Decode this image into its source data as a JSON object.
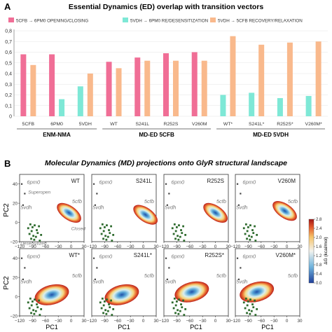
{
  "chart_data": [
    {
      "type": "bar",
      "panel_label": "A",
      "title": "Essential Dynamics (ED) overlap with transition vectors",
      "ylim": [
        0,
        0.8
      ],
      "yticks": [
        "0",
        "0,1",
        "0,2",
        "0,3",
        "0,4",
        "0,5",
        "0,6",
        "0,7",
        "0,8"
      ],
      "legend_placement": "top",
      "series": [
        {
          "name": "5CFB → 6PM0 OPENING/CLOSING",
          "color": "#f06e96"
        },
        {
          "name": "5VDH → 6PM0 RE/DESENSITIZATION",
          "color": "#7ee8d6"
        },
        {
          "name": "5VDH → 5CFB RECOVERY/RELAXATION",
          "color": "#f9b98c"
        }
      ],
      "categories": [
        "5CFB",
        "6PM0",
        "5VDH",
        "WT",
        "S241L",
        "R252S",
        "V260M",
        "WT*",
        "S241L*",
        "R252S*",
        "V260M*"
      ],
      "groups": [
        {
          "name": "ENM-NMA",
          "from": 0,
          "to": 2
        },
        {
          "name": "MD-ED 5CFB",
          "from": 3,
          "to": 6
        },
        {
          "name": "MD-ED 5VDH",
          "from": 7,
          "to": 10
        }
      ],
      "bars": [
        {
          "category": "5CFB",
          "values": [
            0.58,
            null,
            0.48
          ]
        },
        {
          "category": "6PM0",
          "values": [
            0.58,
            0.16,
            null
          ]
        },
        {
          "category": "5VDH",
          "values": [
            null,
            0.28,
            0.4
          ]
        },
        {
          "category": "WT",
          "values": [
            0.51,
            null,
            0.45
          ]
        },
        {
          "category": "S241L",
          "values": [
            0.55,
            null,
            0.52
          ]
        },
        {
          "category": "R252S",
          "values": [
            0.59,
            null,
            0.52
          ]
        },
        {
          "category": "V260M",
          "values": [
            0.6,
            null,
            0.52
          ]
        },
        {
          "category": "WT*",
          "values": [
            null,
            0.2,
            0.75
          ]
        },
        {
          "category": "S241L*",
          "values": [
            null,
            0.22,
            0.67
          ]
        },
        {
          "category": "R252S*",
          "values": [
            null,
            0.17,
            0.69
          ]
        },
        {
          "category": "V260M*",
          "values": [
            null,
            0.19,
            0.7
          ]
        }
      ]
    },
    {
      "type": "heatmap",
      "panel_label": "B",
      "title": "Molecular Dynamics (MD) projections onto GlyR structural landscape",
      "xlabel": "PC1",
      "ylabel": "PC2",
      "xlim": [
        -120,
        30
      ],
      "ylim": [
        -20,
        50
      ],
      "xticks": [
        "−120",
        "−90",
        "−60",
        "−30",
        "0",
        "30"
      ],
      "yticks": [
        "−20",
        "0",
        "20",
        "40"
      ],
      "colorbar": {
        "label": "ΔG (kcal/mol)",
        "ticks": [
          "0.0",
          "0.4",
          "0.8",
          "1.2",
          "1.6",
          "2.0",
          "2.4",
          "2.8"
        ],
        "range": [
          0.0,
          2.8
        ]
      },
      "panels": [
        {
          "label": "WT",
          "center": [
            -5,
            10
          ],
          "extra_labels": [
            "Superopen",
            "Closed",
            "Desensitized"
          ]
        },
        {
          "label": "S241L",
          "center": [
            5,
            8
          ],
          "extra_labels": []
        },
        {
          "label": "R252S",
          "center": [
            0,
            10
          ],
          "extra_labels": []
        },
        {
          "label": "V260M",
          "center": [
            -5,
            12
          ],
          "extra_labels": []
        },
        {
          "label": "WT*",
          "center": [
            -45,
            2
          ],
          "extra_labels": []
        },
        {
          "label": "S241L*",
          "center": [
            -50,
            2
          ],
          "extra_labels": []
        },
        {
          "label": "R252S*",
          "center": [
            -55,
            5
          ],
          "extra_labels": []
        },
        {
          "label": "V260M*",
          "center": [
            -70,
            5
          ],
          "extra_labels": []
        }
      ],
      "structure_labels": {
        "open": "6pm0",
        "closed": "5cfb",
        "desensitized": "5vdh"
      }
    }
  ]
}
